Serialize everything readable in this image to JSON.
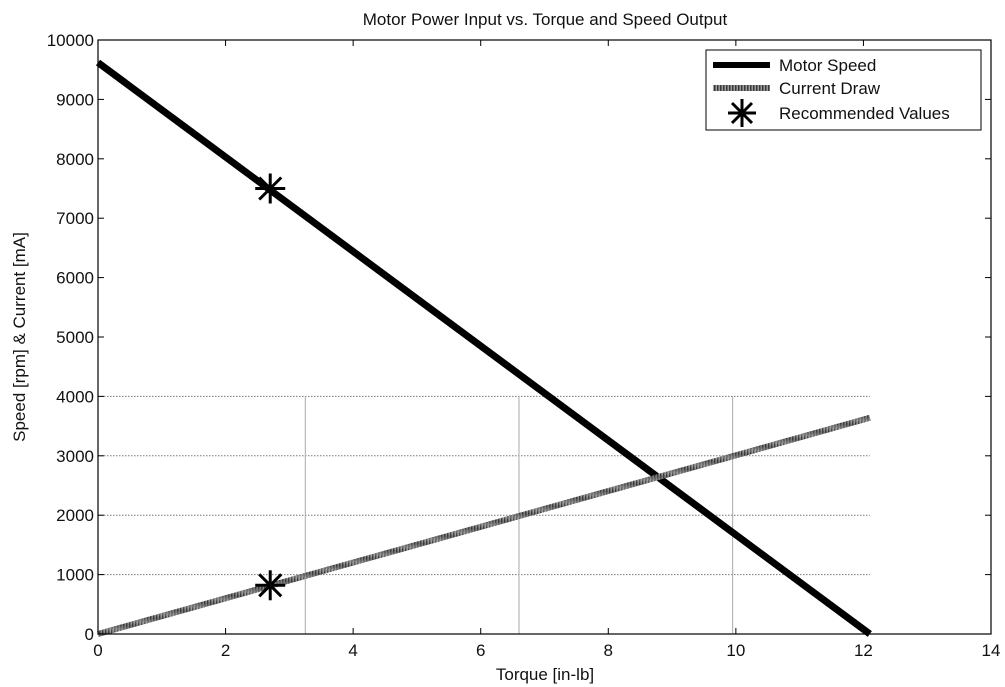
{
  "chart_data": {
    "type": "line",
    "title": "Motor Power Input vs. Torque and Speed Output",
    "xlabel": "Torque [in-lb]",
    "ylabel": "Speed [rpm] & Current [mA]",
    "xlim": [
      0,
      14
    ],
    "ylim": [
      0,
      10000
    ],
    "xticks": [
      0,
      2,
      4,
      6,
      8,
      10,
      12,
      14
    ],
    "yticks": [
      0,
      1000,
      2000,
      3000,
      4000,
      5000,
      6000,
      7000,
      8000,
      9000,
      10000
    ],
    "grid": {
      "horizontal_y": [
        1000,
        2000,
        3000,
        4000
      ],
      "vertical_x": [
        3.25,
        6.6,
        9.95
      ],
      "x_extent": [
        0,
        12.1
      ]
    },
    "legend_position": "top-right",
    "series": [
      {
        "name": "Motor Speed",
        "style": "thick-solid",
        "color": "#000000",
        "x": [
          0,
          12.1
        ],
        "y": [
          9620,
          0
        ]
      },
      {
        "name": "Current Draw",
        "style": "hatched",
        "color": "#666666",
        "x": [
          0,
          12.1
        ],
        "y": [
          0,
          3640
        ]
      },
      {
        "name": "Recommended Values",
        "style": "asterisk-marker",
        "color": "#000000",
        "x": [
          2.7,
          2.7
        ],
        "y": [
          7500,
          820
        ]
      }
    ]
  }
}
